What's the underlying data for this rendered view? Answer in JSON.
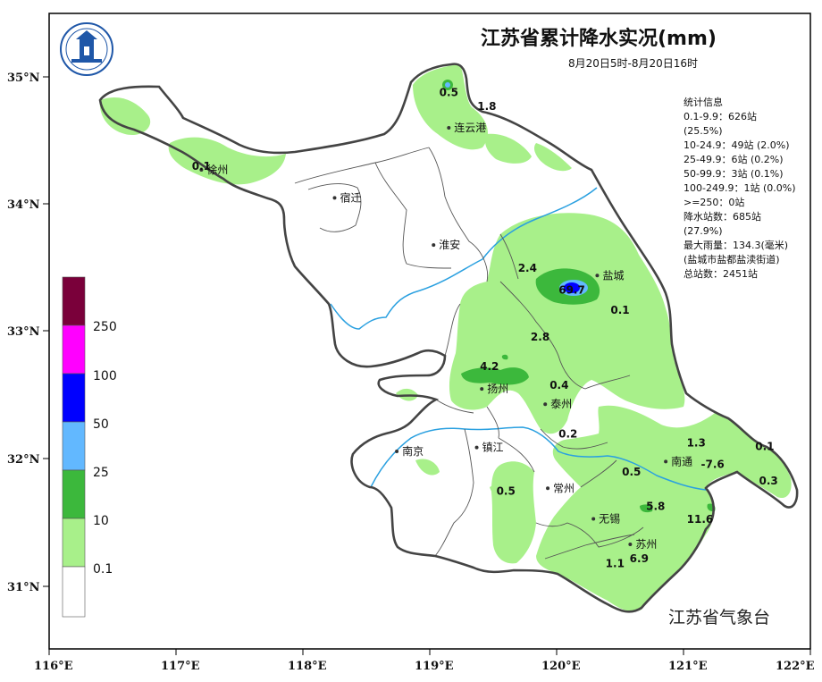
{
  "map": {
    "title": "江苏省累计降水实况(mm)",
    "time_range": "8月20日5时-8月20日16时",
    "credit": "江苏省气象台",
    "stats": {
      "header": "统计信息",
      "lines": [
        "0.1-9.9：626站",
        "(25.5%)",
        "10-24.9：49站 (2.0%)",
        "25-49.9：6站 (0.2%)",
        "50-99.9：3站 (0.1%)",
        "100-249.9：1站 (0.0%)",
        ">=250：0站",
        "降水站数：685站",
        "(27.9%)",
        "最大雨量：134.3(毫米)",
        "(盐城市盐都盐渎街道)",
        "总站数：2451站"
      ]
    },
    "x_axis": {
      "ticks": [
        {
          "label": "116°E",
          "lon": 116
        },
        {
          "label": "117°E",
          "lon": 117
        },
        {
          "label": "118°E",
          "lon": 118
        },
        {
          "label": "119°E",
          "lon": 119
        },
        {
          "label": "120°E",
          "lon": 120
        },
        {
          "label": "121°E",
          "lon": 121
        },
        {
          "label": "122°E",
          "lon": 122
        }
      ]
    },
    "y_axis": {
      "ticks": [
        {
          "label": "35°N",
          "lat": 35
        },
        {
          "label": "34°N",
          "lat": 34
        },
        {
          "label": "33°N",
          "lat": 33
        },
        {
          "label": "32°N",
          "lat": 32
        },
        {
          "label": "31°N",
          "lat": 31
        }
      ]
    },
    "legend": [
      {
        "label": "250",
        "color": "#7a003a"
      },
      {
        "label": "100",
        "color": "#ff00ff"
      },
      {
        "label": "50",
        "color": "#0000ff"
      },
      {
        "label": "25",
        "color": "#62b8ff"
      },
      {
        "label": "10",
        "color": "#3cb83c"
      },
      {
        "label": "0.1",
        "color": "#a8f08a"
      },
      {
        "label": "",
        "color": "#ffffff"
      }
    ],
    "cities": [
      {
        "name": "连云港",
        "lon": 119.15,
        "lat": 34.6
      },
      {
        "name": "徐州",
        "lon": 117.2,
        "lat": 34.27
      },
      {
        "name": "宿迁",
        "lon": 118.25,
        "lat": 34.05
      },
      {
        "name": "淮安",
        "lon": 119.03,
        "lat": 33.68
      },
      {
        "name": "盐城",
        "lon": 120.32,
        "lat": 33.44
      },
      {
        "name": "扬州",
        "lon": 119.41,
        "lat": 32.55
      },
      {
        "name": "泰州",
        "lon": 119.91,
        "lat": 32.43
      },
      {
        "name": "南京",
        "lon": 118.74,
        "lat": 32.06
      },
      {
        "name": "镇江",
        "lon": 119.37,
        "lat": 32.09
      },
      {
        "name": "南通",
        "lon": 120.86,
        "lat": 31.98
      },
      {
        "name": "常州",
        "lon": 119.93,
        "lat": 31.77
      },
      {
        "name": "无锡",
        "lon": 120.29,
        "lat": 31.53
      },
      {
        "name": "苏州",
        "lon": 120.58,
        "lat": 31.33
      }
    ],
    "rain_values": [
      {
        "text": "0.5",
        "lon": 119.15,
        "lat": 34.85
      },
      {
        "text": "1.8",
        "lon": 119.45,
        "lat": 34.74
      },
      {
        "text": "0.1",
        "lon": 117.2,
        "lat": 34.27
      },
      {
        "text": "2.4",
        "lon": 119.77,
        "lat": 33.47
      },
      {
        "text": "69.7",
        "lon": 120.12,
        "lat": 33.3
      },
      {
        "text": "0.1",
        "lon": 120.5,
        "lat": 33.14
      },
      {
        "text": "2.8",
        "lon": 119.87,
        "lat": 32.93
      },
      {
        "text": "4.2",
        "lon": 119.47,
        "lat": 32.7
      },
      {
        "text": "0.4",
        "lon": 120.02,
        "lat": 32.55
      },
      {
        "text": "0.2",
        "lon": 120.09,
        "lat": 32.17
      },
      {
        "text": "1.3",
        "lon": 121.1,
        "lat": 32.1
      },
      {
        "text": "0.1",
        "lon": 121.64,
        "lat": 32.07
      },
      {
        "text": "-7.6",
        "lon": 121.23,
        "lat": 31.93
      },
      {
        "text": "0.5",
        "lon": 120.59,
        "lat": 31.87
      },
      {
        "text": "0.3",
        "lon": 121.67,
        "lat": 31.8
      },
      {
        "text": "0.5",
        "lon": 119.6,
        "lat": 31.72
      },
      {
        "text": "5.8",
        "lon": 120.78,
        "lat": 31.6
      },
      {
        "text": "11.6",
        "lon": 121.13,
        "lat": 31.5
      },
      {
        "text": "6.9",
        "lon": 120.65,
        "lat": 31.19
      },
      {
        "text": "1.1",
        "lon": 120.46,
        "lat": 31.15
      }
    ]
  }
}
